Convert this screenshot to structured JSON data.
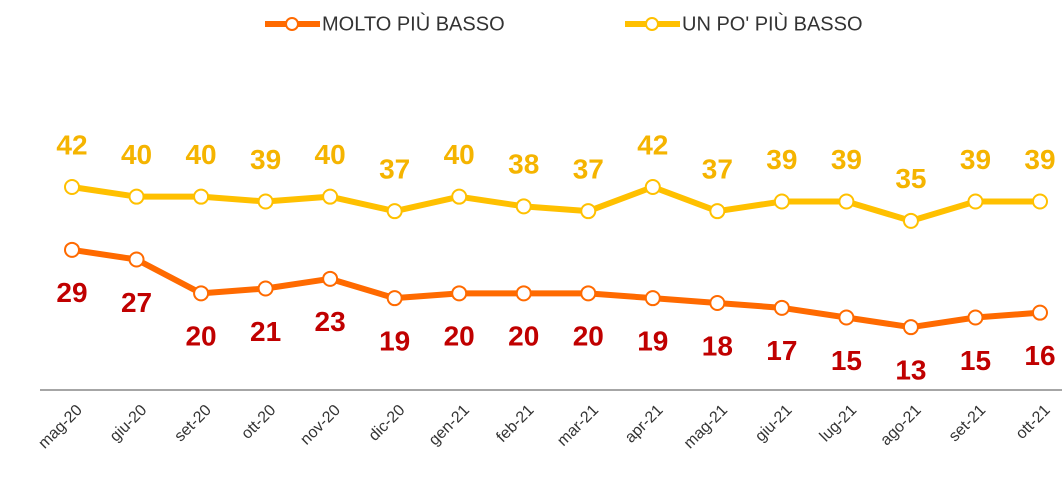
{
  "chart_data": {
    "type": "line",
    "categories": [
      "mag-20",
      "giu-20",
      "set-20",
      "ott-20",
      "nov-20",
      "dic-20",
      "gen-21",
      "feb-21",
      "mar-21",
      "apr-21",
      "mag-21",
      "giu-21",
      "lug-21",
      "ago-21",
      "set-21",
      "ott-21"
    ],
    "series": [
      {
        "name": "MOLTO PIÙ BASSO",
        "color": "#ff6a00",
        "label_color": "#c00000",
        "values": [
          29,
          27,
          20,
          21,
          23,
          19,
          20,
          20,
          20,
          19,
          18,
          17,
          15,
          13,
          15,
          16
        ]
      },
      {
        "name": "UN PO' PIÙ BASSO",
        "color": "#ffc000",
        "label_color": "#f5b400",
        "values": [
          42,
          40,
          40,
          39,
          40,
          37,
          40,
          38,
          37,
          42,
          37,
          39,
          39,
          35,
          39,
          39
        ]
      }
    ],
    "ylim": [
      0,
      60
    ],
    "legend": "top"
  }
}
